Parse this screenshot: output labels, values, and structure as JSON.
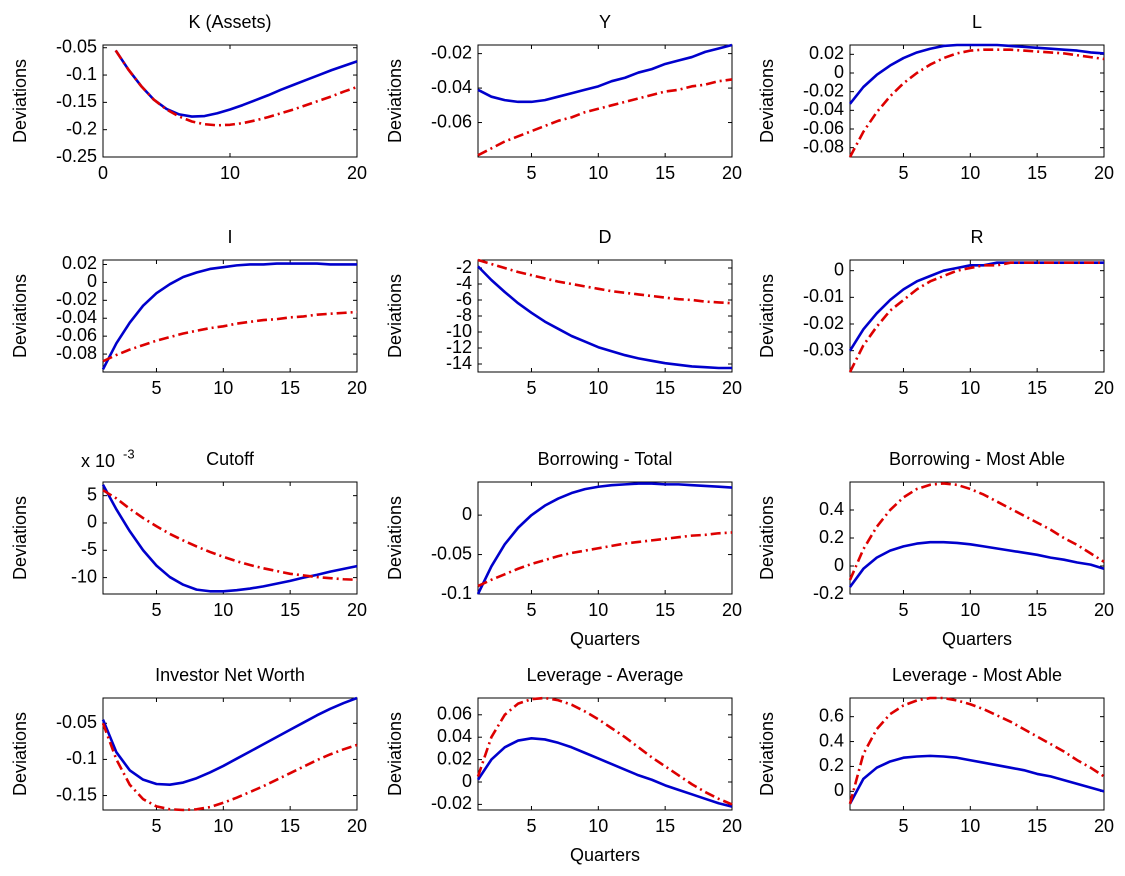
{
  "chart_data": [
    {
      "type": "line",
      "title": "K (Assets)",
      "ylabel": "Deviations",
      "xlim": [
        0,
        20
      ],
      "xticks": [
        0,
        10,
        20
      ],
      "ylim": [
        -0.25,
        -0.045
      ],
      "yticks": [
        -0.25,
        -0.2,
        -0.15,
        -0.1,
        -0.05
      ],
      "x": [
        1,
        2,
        3,
        4,
        5,
        6,
        7,
        8,
        9,
        10,
        11,
        12,
        13,
        14,
        15,
        16,
        17,
        18,
        19,
        20
      ],
      "series": [
        {
          "color": "#0000cc",
          "style": "solid",
          "values": [
            -0.055,
            -0.09,
            -0.12,
            -0.145,
            -0.162,
            -0.172,
            -0.176,
            -0.175,
            -0.17,
            -0.163,
            -0.155,
            -0.146,
            -0.137,
            -0.127,
            -0.118,
            -0.109,
            -0.1,
            -0.091,
            -0.083,
            -0.075
          ]
        },
        {
          "color": "#dd0000",
          "style": "dashdot",
          "values": [
            -0.055,
            -0.09,
            -0.12,
            -0.145,
            -0.163,
            -0.176,
            -0.185,
            -0.19,
            -0.192,
            -0.191,
            -0.188,
            -0.183,
            -0.177,
            -0.17,
            -0.163,
            -0.155,
            -0.147,
            -0.139,
            -0.13,
            -0.122
          ]
        }
      ]
    },
    {
      "type": "line",
      "title": "Y",
      "ylabel": "Deviations",
      "xlim": [
        1,
        20
      ],
      "xticks": [
        5,
        10,
        15,
        20
      ],
      "ylim": [
        -0.08,
        -0.015
      ],
      "yticks": [
        -0.06,
        -0.04,
        -0.02
      ],
      "x": [
        1,
        2,
        3,
        4,
        5,
        6,
        7,
        8,
        9,
        10,
        11,
        12,
        13,
        14,
        15,
        16,
        17,
        18,
        19,
        20
      ],
      "series": [
        {
          "color": "#0000cc",
          "style": "solid",
          "values": [
            -0.041,
            -0.045,
            -0.047,
            -0.048,
            -0.048,
            -0.047,
            -0.045,
            -0.043,
            -0.041,
            -0.039,
            -0.036,
            -0.034,
            -0.031,
            -0.029,
            -0.026,
            -0.024,
            -0.022,
            -0.019,
            -0.017,
            -0.015
          ]
        },
        {
          "color": "#dd0000",
          "style": "dashdot",
          "values": [
            -0.079,
            -0.075,
            -0.071,
            -0.068,
            -0.065,
            -0.062,
            -0.059,
            -0.057,
            -0.054,
            -0.052,
            -0.05,
            -0.048,
            -0.046,
            -0.044,
            -0.042,
            -0.041,
            -0.039,
            -0.038,
            -0.036,
            -0.035
          ]
        }
      ]
    },
    {
      "type": "line",
      "title": "L",
      "ylabel": "Deviations",
      "xlim": [
        1,
        20
      ],
      "xticks": [
        5,
        10,
        15,
        20
      ],
      "ylim": [
        -0.09,
        0.03
      ],
      "yticks": [
        -0.08,
        -0.06,
        -0.04,
        -0.02,
        0,
        0.02
      ],
      "x": [
        1,
        2,
        3,
        4,
        5,
        6,
        7,
        8,
        9,
        10,
        11,
        12,
        13,
        14,
        15,
        16,
        17,
        18,
        19,
        20
      ],
      "series": [
        {
          "color": "#0000cc",
          "style": "solid",
          "values": [
            -0.033,
            -0.015,
            -0.002,
            0.008,
            0.016,
            0.022,
            0.026,
            0.029,
            0.03,
            0.03,
            0.03,
            0.03,
            0.029,
            0.028,
            0.027,
            0.026,
            0.025,
            0.024,
            0.022,
            0.021
          ]
        },
        {
          "color": "#dd0000",
          "style": "dashdot",
          "values": [
            -0.09,
            -0.063,
            -0.042,
            -0.025,
            -0.011,
            0,
            0.009,
            0.016,
            0.021,
            0.024,
            0.025,
            0.025,
            0.025,
            0.024,
            0.023,
            0.022,
            0.021,
            0.019,
            0.017,
            0.015
          ]
        }
      ]
    },
    {
      "type": "line",
      "title": "I",
      "ylabel": "Deviations",
      "xlim": [
        1,
        20
      ],
      "xticks": [
        5,
        10,
        15,
        20
      ],
      "ylim": [
        -0.1,
        0.025
      ],
      "yticks": [
        -0.08,
        -0.06,
        -0.04,
        -0.02,
        0,
        0.02
      ],
      "x": [
        1,
        2,
        3,
        4,
        5,
        6,
        7,
        8,
        9,
        10,
        11,
        12,
        13,
        14,
        15,
        16,
        17,
        18,
        19,
        20
      ],
      "series": [
        {
          "color": "#0000cc",
          "style": "solid",
          "values": [
            -0.097,
            -0.068,
            -0.045,
            -0.026,
            -0.012,
            -0.002,
            0.006,
            0.011,
            0.015,
            0.017,
            0.019,
            0.02,
            0.02,
            0.021,
            0.021,
            0.021,
            0.021,
            0.02,
            0.02,
            0.02
          ]
        },
        {
          "color": "#dd0000",
          "style": "dashdot",
          "values": [
            -0.088,
            -0.081,
            -0.075,
            -0.07,
            -0.065,
            -0.061,
            -0.057,
            -0.054,
            -0.051,
            -0.049,
            -0.046,
            -0.044,
            -0.042,
            -0.041,
            -0.039,
            -0.038,
            -0.036,
            -0.035,
            -0.034,
            -0.033
          ]
        }
      ]
    },
    {
      "type": "line",
      "title": "D",
      "ylabel": "Deviations",
      "xlim": [
        1,
        20
      ],
      "xticks": [
        5,
        10,
        15,
        20
      ],
      "ylim": [
        -15,
        -1
      ],
      "yticks": [
        -14,
        -12,
        -10,
        -8,
        -6,
        -4,
        -2
      ],
      "x": [
        1,
        2,
        3,
        4,
        5,
        6,
        7,
        8,
        9,
        10,
        11,
        12,
        13,
        14,
        15,
        16,
        17,
        18,
        19,
        20
      ],
      "series": [
        {
          "color": "#0000cc",
          "style": "solid",
          "values": [
            -1.8,
            -3.5,
            -5,
            -6.4,
            -7.6,
            -8.7,
            -9.6,
            -10.5,
            -11.2,
            -11.9,
            -12.4,
            -12.9,
            -13.3,
            -13.6,
            -13.9,
            -14.1,
            -14.3,
            -14.4,
            -14.5,
            -14.5
          ]
        },
        {
          "color": "#dd0000",
          "style": "dashdot",
          "values": [
            -1,
            -1.5,
            -2,
            -2.5,
            -2.9,
            -3.3,
            -3.7,
            -4,
            -4.3,
            -4.6,
            -4.9,
            -5.1,
            -5.3,
            -5.5,
            -5.7,
            -5.9,
            -6,
            -6.2,
            -6.3,
            -6.4
          ]
        }
      ]
    },
    {
      "type": "line",
      "title": "R",
      "ylabel": "Deviations",
      "xlim": [
        1,
        20
      ],
      "xticks": [
        5,
        10,
        15,
        20
      ],
      "ylim": [
        -0.038,
        0.004
      ],
      "yticks": [
        -0.03,
        -0.02,
        -0.01,
        0
      ],
      "x": [
        1,
        2,
        3,
        4,
        5,
        6,
        7,
        8,
        9,
        10,
        11,
        12,
        13,
        14,
        15,
        16,
        17,
        18,
        19,
        20
      ],
      "series": [
        {
          "color": "#0000cc",
          "style": "solid",
          "values": [
            -0.03,
            -0.022,
            -0.016,
            -0.011,
            -0.007,
            -0.004,
            -0.002,
            0,
            0.001,
            0.002,
            0.002,
            0.003,
            0.003,
            0.003,
            0.003,
            0.003,
            0.003,
            0.003,
            0.003,
            0.003
          ]
        },
        {
          "color": "#dd0000",
          "style": "dashdot",
          "values": [
            -0.038,
            -0.028,
            -0.021,
            -0.015,
            -0.011,
            -0.007,
            -0.004,
            -0.002,
            0,
            0.001,
            0.002,
            0.002,
            0.003,
            0.003,
            0.003,
            0.003,
            0.003,
            0.003,
            0.003,
            0.003
          ]
        }
      ]
    },
    {
      "type": "line",
      "title": "Cutoff",
      "ylabel": "Deviations",
      "y_multiplier": {
        "base": "x 10",
        "exponent": "-3"
      },
      "xlim": [
        1,
        20
      ],
      "xticks": [
        5,
        10,
        15,
        20
      ],
      "ylim": [
        -13,
        7.5
      ],
      "yticks": [
        -10,
        -5,
        0,
        5
      ],
      "x": [
        1,
        2,
        3,
        4,
        5,
        6,
        7,
        8,
        9,
        10,
        11,
        12,
        13,
        14,
        15,
        16,
        17,
        18,
        19,
        20
      ],
      "series": [
        {
          "color": "#0000cc",
          "style": "solid",
          "values": [
            7,
            2.5,
            -1.5,
            -5,
            -7.8,
            -9.9,
            -11.3,
            -12.2,
            -12.5,
            -12.5,
            -12.3,
            -12,
            -11.6,
            -11.1,
            -10.6,
            -10,
            -9.5,
            -8.9,
            -8.4,
            -7.9
          ]
        },
        {
          "color": "#dd0000",
          "style": "dashdot",
          "values": [
            6,
            4.5,
            2.6,
            0.9,
            -0.6,
            -2,
            -3.2,
            -4.3,
            -5.3,
            -6.2,
            -7,
            -7.7,
            -8.3,
            -8.8,
            -9.3,
            -9.6,
            -9.9,
            -10.1,
            -10.3,
            -10.4
          ]
        }
      ]
    },
    {
      "type": "line",
      "title": "Borrowing - Total",
      "ylabel": "Deviations",
      "xlabel": "Quarters",
      "xlim": [
        1,
        20
      ],
      "xticks": [
        5,
        10,
        15,
        20
      ],
      "ylim": [
        -0.1,
        0.042
      ],
      "yticks": [
        -0.1,
        -0.05,
        0
      ],
      "x": [
        1,
        2,
        3,
        4,
        5,
        6,
        7,
        8,
        9,
        10,
        11,
        12,
        13,
        14,
        15,
        16,
        17,
        18,
        19,
        20
      ],
      "series": [
        {
          "color": "#0000cc",
          "style": "solid",
          "values": [
            -0.1,
            -0.065,
            -0.037,
            -0.016,
            0,
            0.012,
            0.021,
            0.028,
            0.033,
            0.036,
            0.038,
            0.039,
            0.04,
            0.04,
            0.039,
            0.039,
            0.038,
            0.037,
            0.036,
            0.035
          ]
        },
        {
          "color": "#dd0000",
          "style": "dashdot",
          "values": [
            -0.09,
            -0.082,
            -0.075,
            -0.068,
            -0.062,
            -0.057,
            -0.052,
            -0.048,
            -0.045,
            -0.042,
            -0.039,
            -0.036,
            -0.034,
            -0.032,
            -0.03,
            -0.028,
            -0.026,
            -0.025,
            -0.023,
            -0.022
          ]
        }
      ]
    },
    {
      "type": "line",
      "title": "Borrowing - Most Able",
      "ylabel": "Deviations",
      "xlabel": "Quarters",
      "xlim": [
        1,
        20
      ],
      "xticks": [
        5,
        10,
        15,
        20
      ],
      "ylim": [
        -0.2,
        0.6
      ],
      "yticks": [
        -0.2,
        0,
        0.2,
        0.4
      ],
      "x": [
        1,
        2,
        3,
        4,
        5,
        6,
        7,
        8,
        9,
        10,
        11,
        12,
        13,
        14,
        15,
        16,
        17,
        18,
        19,
        20
      ],
      "series": [
        {
          "color": "#0000cc",
          "style": "solid",
          "values": [
            -0.15,
            -0.02,
            0.06,
            0.11,
            0.14,
            0.16,
            0.17,
            0.17,
            0.165,
            0.155,
            0.14,
            0.125,
            0.11,
            0.095,
            0.08,
            0.06,
            0.045,
            0.025,
            0.01,
            -0.02
          ]
        },
        {
          "color": "#dd0000",
          "style": "dashdot",
          "values": [
            -0.1,
            0.12,
            0.28,
            0.4,
            0.49,
            0.55,
            0.58,
            0.59,
            0.58,
            0.55,
            0.51,
            0.46,
            0.41,
            0.36,
            0.31,
            0.26,
            0.2,
            0.15,
            0.09,
            0.03
          ]
        }
      ]
    },
    {
      "type": "line",
      "title": "Investor Net Worth",
      "ylabel": "Deviations",
      "xlim": [
        1,
        20
      ],
      "xticks": [
        5,
        10,
        15,
        20
      ],
      "ylim": [
        -0.17,
        -0.015
      ],
      "yticks": [
        -0.15,
        -0.1,
        -0.05
      ],
      "x": [
        1,
        2,
        3,
        4,
        5,
        6,
        7,
        8,
        9,
        10,
        11,
        12,
        13,
        14,
        15,
        16,
        17,
        18,
        19,
        20
      ],
      "series": [
        {
          "color": "#0000cc",
          "style": "solid",
          "values": [
            -0.045,
            -0.09,
            -0.115,
            -0.128,
            -0.134,
            -0.135,
            -0.132,
            -0.126,
            -0.118,
            -0.109,
            -0.099,
            -0.089,
            -0.079,
            -0.069,
            -0.059,
            -0.049,
            -0.039,
            -0.03,
            -0.022,
            -0.015
          ]
        },
        {
          "color": "#dd0000",
          "style": "dashdot",
          "values": [
            -0.05,
            -0.1,
            -0.135,
            -0.155,
            -0.165,
            -0.169,
            -0.17,
            -0.169,
            -0.166,
            -0.16,
            -0.153,
            -0.145,
            -0.137,
            -0.128,
            -0.119,
            -0.11,
            -0.101,
            -0.093,
            -0.086,
            -0.08
          ]
        }
      ]
    },
    {
      "type": "line",
      "title": "Leverage - Average",
      "ylabel": "Deviations",
      "xlabel": "Quarters",
      "xlim": [
        1,
        20
      ],
      "xticks": [
        5,
        10,
        15,
        20
      ],
      "ylim": [
        -0.025,
        0.075
      ],
      "yticks": [
        -0.02,
        0,
        0.02,
        0.04,
        0.06
      ],
      "x": [
        1,
        2,
        3,
        4,
        5,
        6,
        7,
        8,
        9,
        10,
        11,
        12,
        13,
        14,
        15,
        16,
        17,
        18,
        19,
        20
      ],
      "series": [
        {
          "color": "#0000cc",
          "style": "solid",
          "values": [
            0.002,
            0.02,
            0.031,
            0.037,
            0.039,
            0.038,
            0.035,
            0.031,
            0.026,
            0.021,
            0.016,
            0.011,
            0.006,
            0.002,
            -0.003,
            -0.007,
            -0.011,
            -0.015,
            -0.019,
            -0.022
          ]
        },
        {
          "color": "#dd0000",
          "style": "dashdot",
          "values": [
            0.005,
            0.04,
            0.06,
            0.07,
            0.074,
            0.075,
            0.073,
            0.069,
            0.063,
            0.056,
            0.048,
            0.04,
            0.031,
            0.022,
            0.014,
            0.006,
            -0.002,
            -0.009,
            -0.015,
            -0.02
          ]
        }
      ]
    },
    {
      "type": "line",
      "title": "Leverage - Most Able",
      "ylabel": "Deviations",
      "xlim": [
        1,
        20
      ],
      "xticks": [
        5,
        10,
        15,
        20
      ],
      "ylim": [
        -0.15,
        0.75
      ],
      "yticks": [
        0,
        0.2,
        0.4,
        0.6
      ],
      "x": [
        1,
        2,
        3,
        4,
        5,
        6,
        7,
        8,
        9,
        10,
        11,
        12,
        13,
        14,
        15,
        16,
        17,
        18,
        19,
        20
      ],
      "series": [
        {
          "color": "#0000cc",
          "style": "solid",
          "values": [
            -0.1,
            0.1,
            0.19,
            0.24,
            0.27,
            0.28,
            0.285,
            0.28,
            0.27,
            0.25,
            0.23,
            0.21,
            0.19,
            0.17,
            0.14,
            0.12,
            0.09,
            0.06,
            0.03,
            0
          ]
        },
        {
          "color": "#dd0000",
          "style": "dashdot",
          "values": [
            -0.1,
            0.3,
            0.5,
            0.62,
            0.69,
            0.73,
            0.75,
            0.75,
            0.73,
            0.7,
            0.66,
            0.61,
            0.56,
            0.5,
            0.44,
            0.38,
            0.32,
            0.25,
            0.19,
            0.12
          ]
        }
      ]
    }
  ]
}
